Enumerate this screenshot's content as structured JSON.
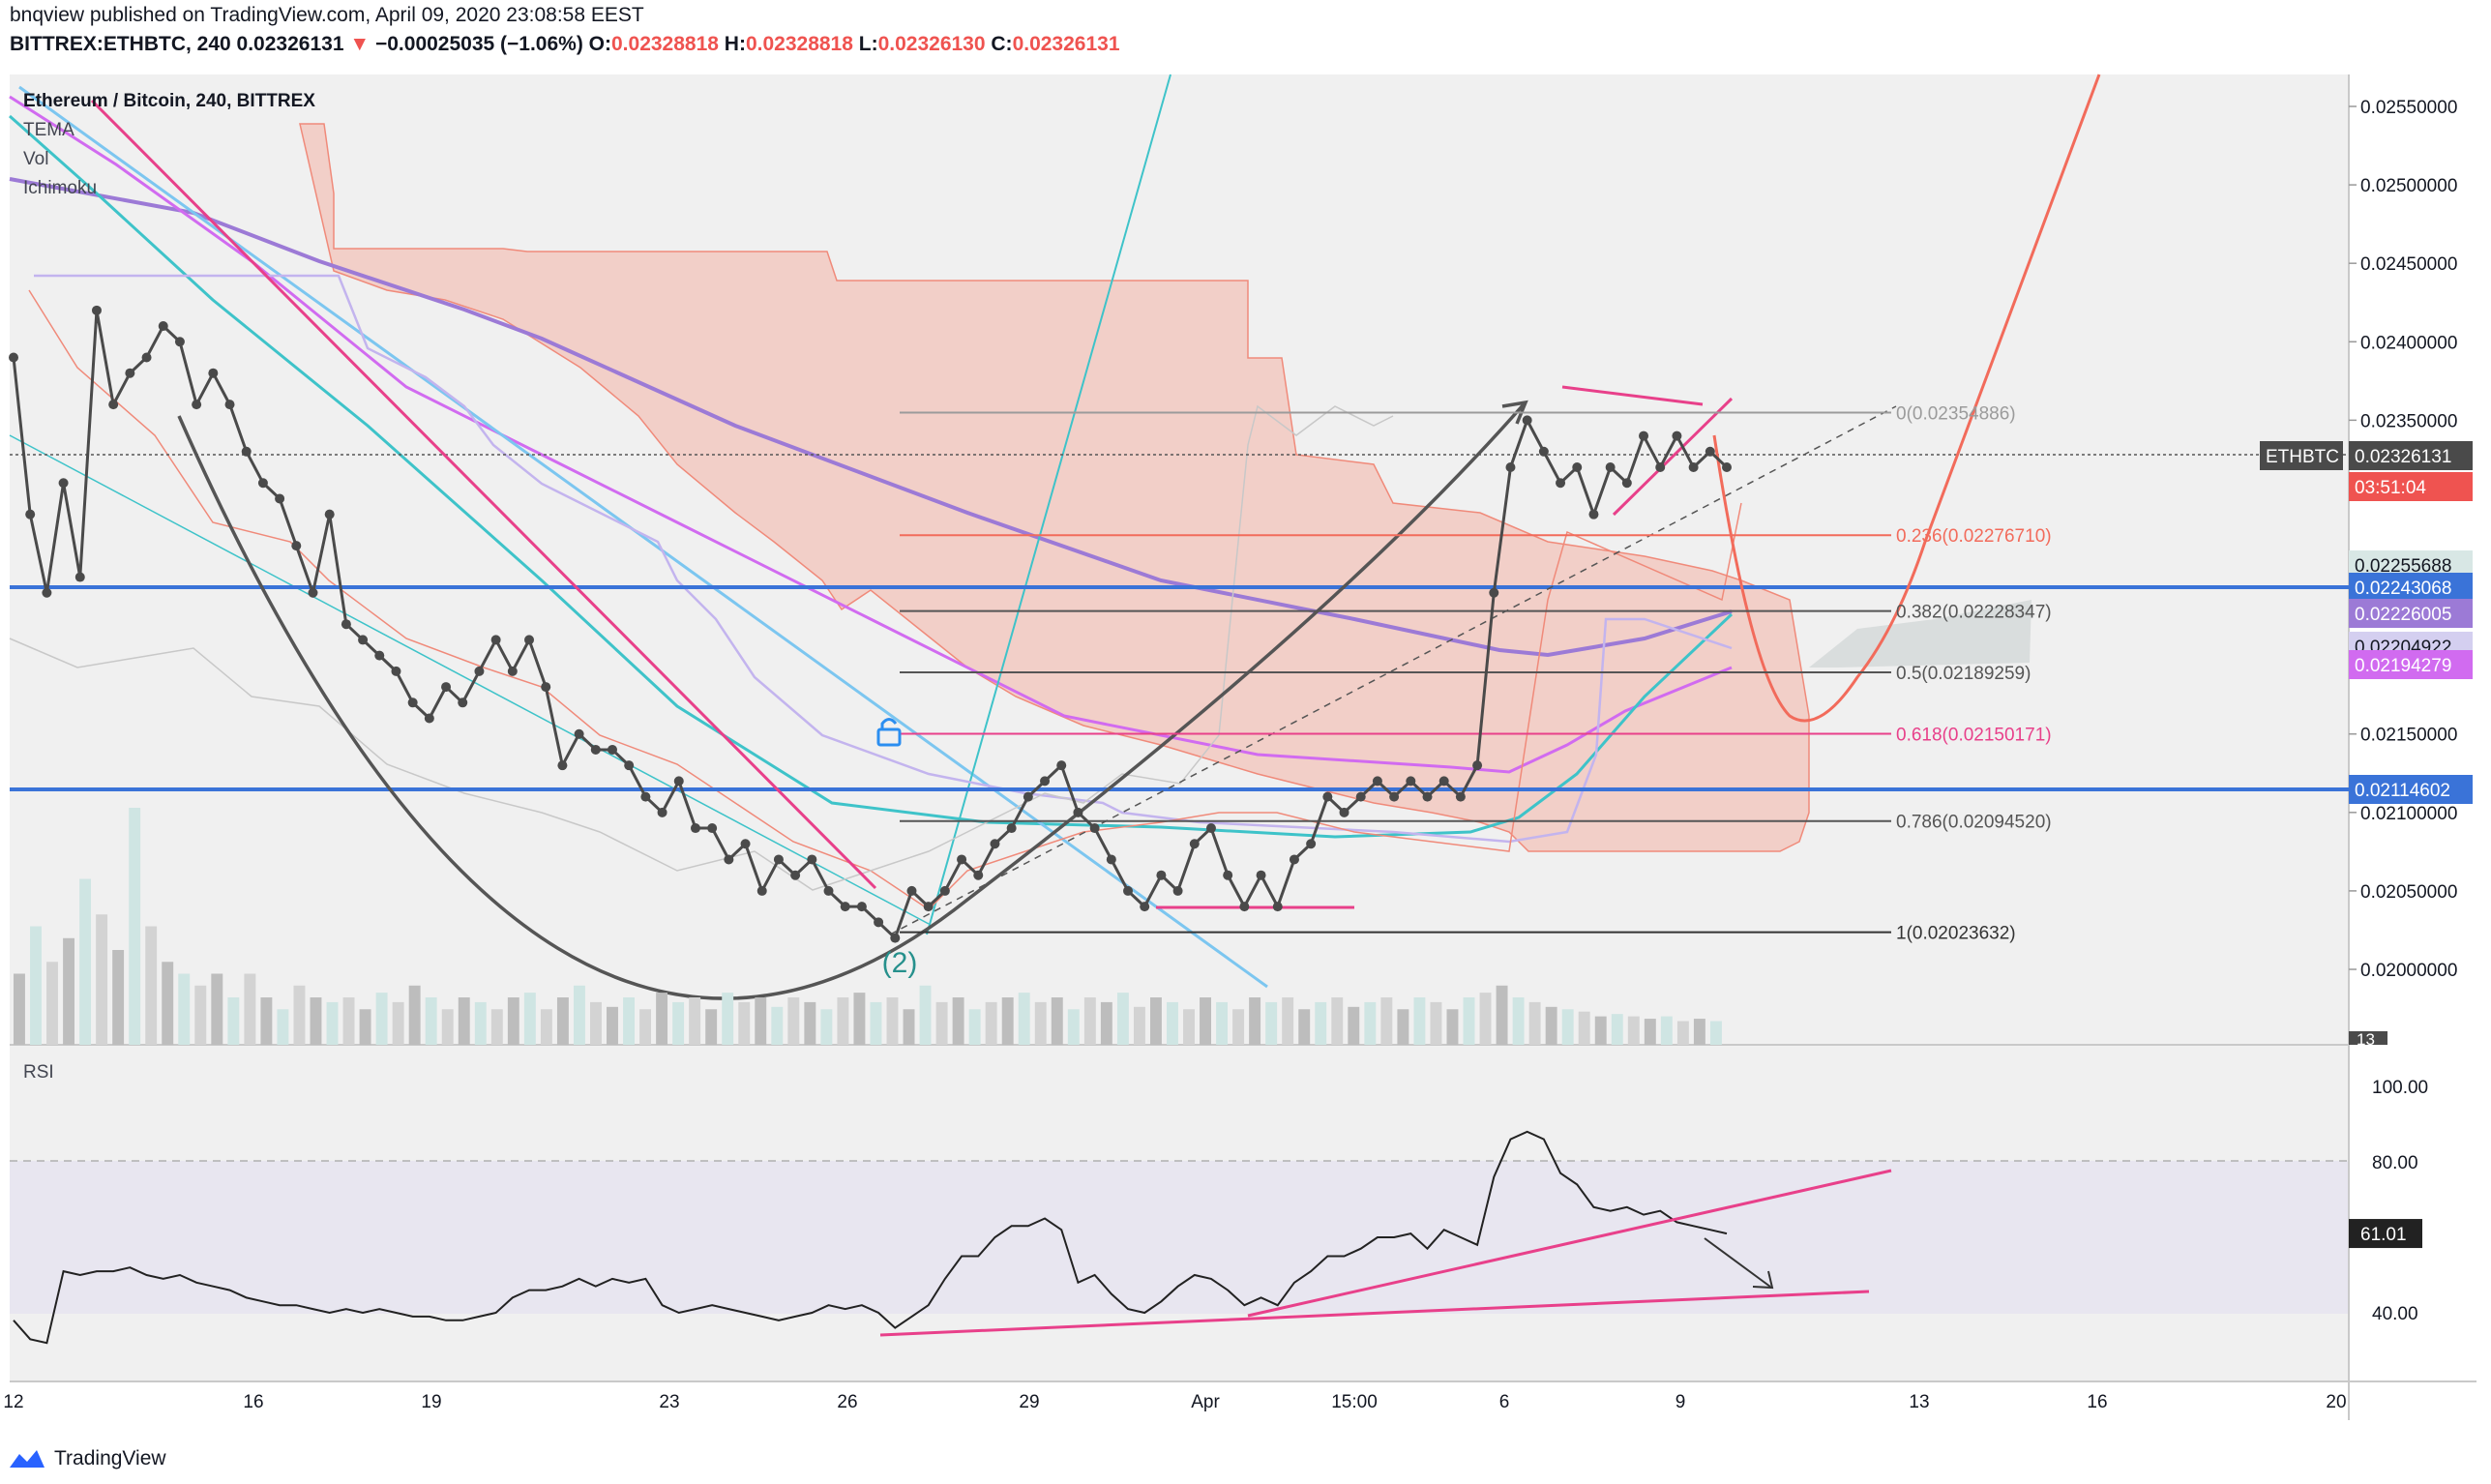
{
  "header": {
    "published": "bnqview published on TradingView.com, April 09, 2020 23:08:58 EEST",
    "symbol": "BITTREX:ETHBTC, 240",
    "last": "0.02326131",
    "arrow": "▼",
    "change": "−0.00025035 (−1.06%)",
    "o_label": "O:",
    "o": "0.02328818",
    "h_label": "H:",
    "h": "0.02328818",
    "l_label": "L:",
    "l": "0.02326130",
    "c_label": "C:",
    "c": "0.02326131"
  },
  "legend": {
    "title": "Ethereum / Bitcoin, 240, BITTREX",
    "studies": [
      "TEMA",
      "Vol",
      "Ichimoku"
    ]
  },
  "rsi_label": "RSI",
  "footer": {
    "brand": "TradingView"
  },
  "colors": {
    "cloud": "#f4a696",
    "price": "#4a4a4a",
    "blue_line": "#3a73d8",
    "pink": "#e8408a",
    "cyan": "#3ec3c9",
    "purple": "#9c7ad6",
    "magenta": "#d16bf0",
    "light_blue": "#7cc6f0",
    "red_projection": "#f26b5b",
    "rsi_line": "#222222"
  },
  "chart_data": {
    "type": "line",
    "title": "Ethereum / Bitcoin, 240, BITTREX",
    "x_ticks": [
      "12",
      "16",
      "19",
      "23",
      "26",
      "29",
      "Apr",
      "15:00",
      "6",
      "9",
      "13",
      "16",
      "20"
    ],
    "y_ticks": [
      "0.02550000",
      "0.02500000",
      "0.02450000",
      "0.02400000",
      "0.02350000",
      "0.02150000",
      "0.02100000",
      "0.02050000",
      "0.02000000"
    ],
    "ylim": [
      0.0196,
      0.0256
    ],
    "price_series": {
      "name": "ETHBTC",
      "values": [
        0.0239,
        0.0229,
        0.0224,
        0.0231,
        0.0225,
        0.0242,
        0.0236,
        0.0238,
        0.0239,
        0.0241,
        0.024,
        0.0236,
        0.0238,
        0.0236,
        0.0233,
        0.0231,
        0.023,
        0.0227,
        0.0224,
        0.0229,
        0.0222,
        0.0221,
        0.022,
        0.0219,
        0.0217,
        0.0216,
        0.0218,
        0.0217,
        0.0219,
        0.0221,
        0.0219,
        0.0221,
        0.0218,
        0.0213,
        0.0215,
        0.0214,
        0.0214,
        0.0213,
        0.0211,
        0.021,
        0.0212,
        0.0209,
        0.0209,
        0.0207,
        0.0208,
        0.0205,
        0.0207,
        0.0206,
        0.0207,
        0.0205,
        0.0204,
        0.0204,
        0.0203,
        0.0202,
        0.0205,
        0.0204,
        0.0205,
        0.0207,
        0.0206,
        0.0208,
        0.0209,
        0.0211,
        0.0212,
        0.0213,
        0.021,
        0.0209,
        0.0207,
        0.0205,
        0.0204,
        0.0206,
        0.0205,
        0.0208,
        0.0209,
        0.0206,
        0.0204,
        0.0206,
        0.0204,
        0.0207,
        0.0208,
        0.0211,
        0.021,
        0.0211,
        0.0212,
        0.0211,
        0.0212,
        0.0211,
        0.0212,
        0.0211,
        0.0213,
        0.0224,
        0.0232,
        0.0235,
        0.0233,
        0.0231,
        0.0232,
        0.0229,
        0.0232,
        0.0231,
        0.0234,
        0.0232,
        0.0234,
        0.0232,
        0.0233,
        0.0232
      ]
    },
    "price_scale_labels": [
      {
        "text": "ETHBTC",
        "bg": "#4a4a4a"
      },
      {
        "text": "0.02326131",
        "bg": "#4a4a4a"
      },
      {
        "text": "03:51:04",
        "bg": "#ef5350"
      },
      {
        "text": "0.02255688",
        "bg": "#d8e7e5"
      },
      {
        "text": "0.02243068",
        "bg": "#3a73d8"
      },
      {
        "text": "0.02226005",
        "bg": "#9c7ad6"
      },
      {
        "text": "0.02204922",
        "bg": "#d4cff0"
      },
      {
        "text": "0.02194279",
        "bg": "#d16bf0"
      },
      {
        "text": "0.02114602",
        "bg": "#3a73d8"
      }
    ],
    "fib_levels": [
      {
        "text": "0(0.02354886)",
        "value": 0.02354886,
        "color": "#9b9b9b"
      },
      {
        "text": "0.236(0.02276710)",
        "value": 0.0227671,
        "color": "#f26b5b"
      },
      {
        "text": "0.382(0.02228347)",
        "value": 0.02228347,
        "color": "#555555"
      },
      {
        "text": "0.5(0.02189259)",
        "value": 0.02189259,
        "color": "#555555"
      },
      {
        "text": "0.618(0.02150171)",
        "value": 0.02150171,
        "color": "#e8408a"
      },
      {
        "text": "0.786(0.02094520)",
        "value": 0.0209452,
        "color": "#555555"
      },
      {
        "text": "1(0.02023632)",
        "value": 0.02023632,
        "color": "#333333"
      }
    ],
    "horizontal_lines": [
      0.02243068,
      0.02114602
    ],
    "wave_label": "(2)",
    "volume_last": "13",
    "rsi": {
      "y_ticks": [
        "100.00",
        "80.00",
        "40.00"
      ],
      "ylim": [
        28,
        100
      ],
      "current": "61.01",
      "values": [
        38,
        33,
        32,
        51,
        50,
        51,
        51,
        52,
        50,
        49,
        50,
        48,
        47,
        46,
        44,
        43,
        42,
        42,
        41,
        40,
        41,
        40,
        41,
        40,
        39,
        39,
        38,
        38,
        39,
        40,
        44,
        46,
        46,
        47,
        49,
        47,
        49,
        48,
        49,
        42,
        40,
        41,
        42,
        41,
        40,
        39,
        38,
        39,
        40,
        42,
        41,
        42,
        40,
        36,
        39,
        42,
        49,
        55,
        55,
        60,
        63,
        63,
        65,
        62,
        48,
        50,
        45,
        41,
        40,
        43,
        47,
        50,
        49,
        46,
        42,
        44,
        42,
        48,
        51,
        55,
        55,
        57,
        60,
        60,
        61,
        57,
        62,
        60,
        58,
        76,
        86,
        88,
        86,
        77,
        74,
        68,
        67,
        68,
        66,
        67,
        64,
        63,
        62,
        61
      ]
    }
  }
}
